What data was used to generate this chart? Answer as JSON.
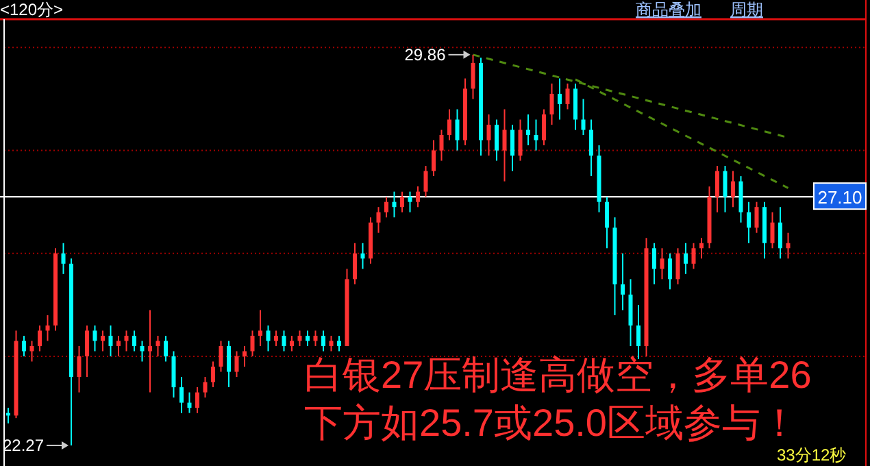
{
  "chart_data": {
    "type": "candlestick",
    "categories": [
      null,
      null,
      null,
      null,
      null,
      null,
      null,
      null,
      null,
      null,
      null,
      null,
      null,
      null,
      null,
      null,
      null,
      null,
      null,
      null,
      null,
      null,
      null,
      null,
      null,
      null,
      null,
      null,
      null,
      null,
      null,
      null,
      null,
      null,
      null,
      null,
      null,
      null,
      null,
      null,
      null,
      null,
      null,
      null,
      null,
      null,
      null,
      null,
      null,
      null,
      null,
      null,
      null,
      null,
      null,
      null,
      null,
      null,
      null,
      null,
      null,
      null,
      null,
      null,
      null,
      null,
      null,
      null,
      null,
      null,
      null,
      null,
      null,
      null,
      null,
      null,
      null,
      null,
      null,
      null,
      null,
      null,
      null,
      null,
      null,
      null,
      null,
      null,
      null,
      null,
      null,
      null,
      null,
      null,
      null,
      null,
      null,
      null,
      null,
      null
    ],
    "ohlc": [
      [
        22.9,
        23.0,
        22.7,
        22.85
      ],
      [
        22.85,
        24.5,
        22.8,
        24.3
      ],
      [
        24.3,
        24.4,
        24.0,
        24.1
      ],
      [
        24.1,
        24.3,
        23.9,
        24.2
      ],
      [
        24.2,
        24.6,
        24.1,
        24.5
      ],
      [
        24.5,
        24.8,
        24.3,
        24.6
      ],
      [
        24.6,
        26.1,
        24.5,
        26.0
      ],
      [
        26.0,
        26.2,
        25.6,
        25.8
      ],
      [
        25.8,
        25.9,
        22.27,
        23.6
      ],
      [
        23.6,
        24.2,
        23.3,
        24.0
      ],
      [
        24.0,
        24.6,
        23.6,
        24.5
      ],
      [
        24.5,
        24.6,
        24.1,
        24.3
      ],
      [
        24.3,
        24.5,
        24.1,
        24.4
      ],
      [
        24.4,
        24.6,
        24.0,
        24.2
      ],
      [
        24.2,
        24.4,
        24.0,
        24.3
      ],
      [
        24.3,
        24.5,
        24.1,
        24.4
      ],
      [
        24.4,
        24.5,
        24.1,
        24.2
      ],
      [
        24.2,
        24.3,
        23.9,
        24.1
      ],
      [
        24.1,
        24.9,
        23.3,
        24.2
      ],
      [
        24.2,
        24.4,
        24.0,
        24.3
      ],
      [
        24.3,
        24.4,
        23.9,
        24.0
      ],
      [
        24.0,
        24.1,
        23.2,
        23.4
      ],
      [
        23.4,
        23.6,
        22.9,
        23.1
      ],
      [
        23.1,
        23.3,
        22.9,
        23.0
      ],
      [
        23.0,
        23.4,
        22.9,
        23.3
      ],
      [
        23.3,
        23.6,
        23.2,
        23.5
      ],
      [
        23.5,
        23.9,
        23.4,
        23.8
      ],
      [
        23.8,
        24.3,
        23.7,
        24.2
      ],
      [
        24.2,
        24.3,
        23.4,
        23.7
      ],
      [
        23.7,
        24.1,
        23.6,
        24.0
      ],
      [
        24.0,
        24.2,
        23.8,
        24.1
      ],
      [
        24.1,
        24.5,
        24.0,
        24.4
      ],
      [
        24.4,
        24.9,
        24.2,
        24.5
      ],
      [
        24.5,
        24.6,
        24.1,
        24.3
      ],
      [
        24.3,
        24.5,
        24.2,
        24.4
      ],
      [
        24.4,
        24.5,
        24.1,
        24.2
      ],
      [
        24.2,
        24.4,
        24.1,
        24.3
      ],
      [
        24.3,
        24.5,
        24.2,
        24.4
      ],
      [
        24.4,
        24.5,
        24.2,
        24.3
      ],
      [
        24.3,
        24.5,
        24.2,
        24.4
      ],
      [
        24.4,
        24.5,
        24.1,
        24.2
      ],
      [
        24.2,
        24.4,
        24.1,
        24.3
      ],
      [
        24.3,
        24.4,
        24.1,
        24.2
      ],
      [
        24.2,
        25.7,
        24.2,
        25.5
      ],
      [
        25.5,
        26.2,
        25.4,
        26.0
      ],
      [
        26.0,
        26.2,
        25.7,
        25.9
      ],
      [
        25.9,
        26.7,
        25.8,
        26.6
      ],
      [
        26.6,
        26.9,
        26.4,
        26.8
      ],
      [
        26.8,
        27.1,
        26.7,
        27.0
      ],
      [
        27.0,
        27.2,
        26.7,
        26.9
      ],
      [
        26.9,
        27.2,
        26.8,
        27.1
      ],
      [
        27.1,
        27.2,
        26.8,
        27.0
      ],
      [
        27.0,
        27.3,
        26.9,
        27.2
      ],
      [
        27.2,
        27.7,
        27.1,
        27.6
      ],
      [
        27.6,
        28.2,
        27.5,
        28.0
      ],
      [
        28.0,
        28.4,
        27.8,
        28.3
      ],
      [
        28.3,
        28.8,
        28.2,
        28.6
      ],
      [
        28.6,
        28.8,
        28.0,
        28.2
      ],
      [
        28.2,
        29.4,
        28.1,
        29.2
      ],
      [
        29.2,
        29.86,
        29.0,
        29.7
      ],
      [
        29.7,
        29.8,
        27.9,
        28.2
      ],
      [
        28.2,
        28.7,
        27.9,
        28.5
      ],
      [
        28.5,
        28.6,
        27.8,
        28.0
      ],
      [
        28.0,
        28.8,
        27.4,
        28.4
      ],
      [
        28.4,
        28.5,
        27.6,
        27.9
      ],
      [
        27.9,
        28.6,
        27.8,
        28.4
      ],
      [
        28.4,
        28.7,
        28.1,
        28.3
      ],
      [
        28.3,
        28.6,
        28.0,
        28.2
      ],
      [
        28.2,
        28.8,
        28.1,
        28.7
      ],
      [
        28.7,
        29.3,
        28.5,
        29.1
      ],
      [
        29.1,
        29.4,
        28.6,
        28.9
      ],
      [
        28.9,
        29.3,
        28.8,
        29.2
      ],
      [
        29.2,
        29.3,
        28.4,
        28.6
      ],
      [
        28.6,
        29.0,
        28.3,
        28.4
      ],
      [
        28.4,
        28.6,
        27.5,
        27.9
      ],
      [
        27.9,
        28.1,
        26.8,
        27.0
      ],
      [
        27.0,
        27.1,
        26.1,
        26.5
      ],
      [
        26.5,
        26.7,
        24.8,
        25.4
      ],
      [
        25.4,
        26.0,
        24.9,
        25.2
      ],
      [
        25.2,
        25.5,
        24.2,
        24.6
      ],
      [
        24.6,
        25.0,
        23.95,
        24.2
      ],
      [
        24.2,
        26.3,
        24.0,
        26.1
      ],
      [
        26.1,
        26.2,
        25.4,
        25.7
      ],
      [
        25.7,
        26.1,
        25.5,
        25.9
      ],
      [
        25.9,
        26.0,
        25.3,
        25.5
      ],
      [
        25.5,
        26.1,
        25.4,
        26.0
      ],
      [
        26.0,
        26.2,
        25.6,
        25.8
      ],
      [
        25.8,
        26.2,
        25.7,
        26.1
      ],
      [
        26.1,
        26.3,
        25.9,
        26.2
      ],
      [
        26.2,
        27.3,
        26.1,
        27.1
      ],
      [
        27.1,
        27.7,
        26.8,
        27.6
      ],
      [
        27.6,
        27.7,
        26.8,
        27.1
      ],
      [
        27.1,
        27.6,
        26.9,
        27.4
      ],
      [
        27.4,
        27.5,
        26.6,
        26.8
      ],
      [
        26.8,
        27.0,
        26.2,
        26.5
      ],
      [
        26.5,
        27.0,
        26.4,
        26.9
      ],
      [
        26.9,
        27.0,
        25.9,
        26.2
      ],
      [
        26.2,
        26.8,
        26.1,
        26.6
      ],
      [
        26.6,
        26.9,
        25.9,
        26.1
      ],
      [
        26.1,
        26.4,
        25.9,
        26.2
      ]
    ],
    "colors": [
      "#00ffff",
      "#ff3232",
      "#00ffff",
      "#ff3232",
      "#ff3232",
      "#ff3232",
      "#ff3232",
      "#00ffff",
      "#00ffff",
      "#ff3232",
      "#ff3232",
      "#00ffff",
      "#ff3232",
      "#00ffff",
      "#ff3232",
      "#ff3232",
      "#00ffff",
      "#00ffff",
      "#ff3232",
      "#ff3232",
      "#00ffff",
      "#00ffff",
      "#00ffff",
      "#00ffff",
      "#ff3232",
      "#ff3232",
      "#ff3232",
      "#ff3232",
      "#00ffff",
      "#ff3232",
      "#ff3232",
      "#ff3232",
      "#ff3232",
      "#00ffff",
      "#ff3232",
      "#00ffff",
      "#ff3232",
      "#ff3232",
      "#00ffff",
      "#ff3232",
      "#00ffff",
      "#ff3232",
      "#00ffff",
      "#ff3232",
      "#ff3232",
      "#00ffff",
      "#ff3232",
      "#ff3232",
      "#ff3232",
      "#00ffff",
      "#ff3232",
      "#00ffff",
      "#ff3232",
      "#ff3232",
      "#ff3232",
      "#ff3232",
      "#ff3232",
      "#00ffff",
      "#ff3232",
      "#ff3232",
      "#00ffff",
      "#ff3232",
      "#00ffff",
      "#ff3232",
      "#00ffff",
      "#ff3232",
      "#00ffff",
      "#00ffff",
      "#ff3232",
      "#ff3232",
      "#00ffff",
      "#ff3232",
      "#00ffff",
      "#00ffff",
      "#00ffff",
      "#00ffff",
      "#00ffff",
      "#00ffff",
      "#00ffff",
      "#00ffff",
      "#00ffff",
      "#ff3232",
      "#00ffff",
      "#ff3232",
      "#00ffff",
      "#ff3232",
      "#00ffff",
      "#ff3232",
      "#ff3232",
      "#ff3232",
      "#ff3232",
      "#00ffff",
      "#ff3232",
      "#00ffff",
      "#00ffff",
      "#ff3232",
      "#00ffff",
      "#ff3232",
      "#00ffff",
      "#ff3232"
    ],
    "series": [
      {
        "type": "line",
        "color": "#4f8a10",
        "line_style": "dashed",
        "values": [
          null,
          null,
          null,
          null,
          null,
          null,
          null,
          null,
          null,
          null,
          null,
          null,
          null,
          null,
          null,
          null,
          null,
          null,
          null,
          null,
          null,
          null,
          null,
          null,
          null,
          null,
          null,
          null,
          null,
          null,
          null,
          null,
          null,
          null,
          null,
          null,
          null,
          null,
          null,
          null,
          null,
          null,
          null,
          null,
          null,
          null,
          null,
          null,
          null,
          null,
          null,
          null,
          null,
          null,
          null,
          null,
          null,
          null,
          null,
          29.86,
          null,
          null,
          null,
          null,
          null,
          null,
          null,
          null,
          null,
          null,
          null,
          null,
          null,
          null,
          null,
          null,
          null,
          null,
          null,
          null,
          null,
          null,
          null,
          null,
          null,
          null,
          null,
          null,
          null,
          null,
          null,
          null,
          null,
          null,
          null,
          null,
          null,
          null,
          null,
          28.25
        ]
      },
      {
        "type": "line",
        "color": "#4f8a10",
        "line_style": "dashed",
        "values": [
          null,
          null,
          null,
          null,
          null,
          null,
          null,
          null,
          null,
          null,
          null,
          null,
          null,
          null,
          null,
          null,
          null,
          null,
          null,
          null,
          null,
          null,
          null,
          null,
          null,
          null,
          null,
          null,
          null,
          null,
          null,
          null,
          null,
          null,
          null,
          null,
          null,
          null,
          null,
          null,
          null,
          null,
          null,
          null,
          null,
          null,
          null,
          null,
          null,
          null,
          null,
          null,
          null,
          null,
          null,
          null,
          null,
          null,
          null,
          null,
          null,
          null,
          null,
          null,
          null,
          null,
          null,
          null,
          null,
          null,
          null,
          null,
          29.38,
          null,
          null,
          null,
          null,
          null,
          null,
          null,
          null,
          null,
          null,
          null,
          null,
          null,
          null,
          null,
          null,
          null,
          null,
          null,
          null,
          null,
          null,
          null,
          null,
          null,
          null,
          27.27
        ]
      }
    ],
    "ylim": [
      21.87,
      30.55
    ],
    "yticks": [
      {
        "value": 24,
        "label": null
      },
      {
        "value": 26,
        "label": null
      },
      {
        "value": 28,
        "label": null
      },
      {
        "value": 30,
        "label": null
      }
    ],
    "grid": "y",
    "ref_lines": [
      {
        "axis": "y",
        "value": 27.1,
        "label": "27.10",
        "color": "#ffffff"
      }
    ],
    "annotations": [
      "29.86",
      "22.27",
      "白银27压制逢高做空，多单26",
      "下方如25.7或25.0区域参与！",
      "<120分>",
      "商品叠加",
      "周期",
      "33分12秒"
    ]
  }
}
